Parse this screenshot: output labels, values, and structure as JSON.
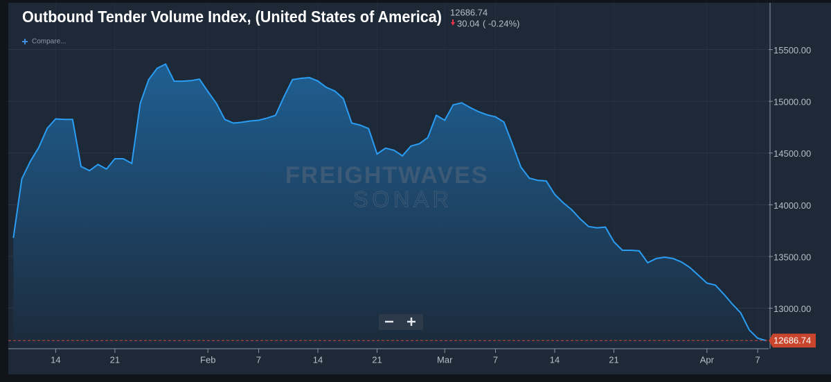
{
  "chart_data": {
    "type": "area",
    "title": "Outbound Tender Volume Index, (United States of America)",
    "change": "30.04",
    "change_pct": "( -0.24%)",
    "compare": "Compare...",
    "watermark": [
      "FREIGHTWAVES",
      "SONAR"
    ],
    "color": "#2a9df4",
    "grid": true,
    "x": [
      9,
      10,
      11,
      12,
      13,
      14,
      15,
      16,
      17,
      18,
      19,
      20,
      21,
      22,
      23,
      24,
      25,
      26,
      27,
      28,
      29,
      30,
      31,
      32,
      33,
      34,
      35,
      36,
      37,
      38,
      39,
      40,
      41,
      42,
      43,
      44,
      45,
      46,
      47,
      48,
      49,
      50,
      51,
      52,
      53,
      54,
      55,
      56,
      57,
      58,
      59,
      60,
      61,
      62,
      63,
      64,
      65,
      66,
      67,
      68,
      69,
      70,
      71,
      72,
      73,
      74,
      75,
      76,
      77,
      78,
      79,
      80,
      81,
      82,
      83,
      84,
      85,
      86,
      87,
      88,
      89,
      90,
      91,
      92,
      93,
      94,
      95,
      96,
      97,
      98
    ],
    "values": [
      13680,
      14250,
      14420,
      14555,
      14740,
      14830,
      14825,
      14825,
      14370,
      14330,
      14390,
      14345,
      14445,
      14445,
      14400,
      14980,
      15210,
      15320,
      15360,
      15195,
      15195,
      15200,
      15215,
      15095,
      14980,
      14825,
      14790,
      14797,
      14810,
      14817,
      14838,
      14865,
      15047,
      15210,
      15222,
      15230,
      15196,
      15135,
      15100,
      15027,
      14790,
      14770,
      14736,
      14490,
      14547,
      14527,
      14473,
      14568,
      14590,
      14650,
      14865,
      14817,
      14966,
      14986,
      14940,
      14900,
      14870,
      14850,
      14800,
      14588,
      14365,
      14257,
      14236,
      14230,
      14100,
      14020,
      13953,
      13865,
      13790,
      13777,
      13784,
      13642,
      13560,
      13560,
      13554,
      13439,
      13480,
      13493,
      13480,
      13446,
      13392,
      13318,
      13243,
      13223,
      13135,
      13040,
      12953,
      12790,
      12709,
      12686.74
    ],
    "xlim": [
      8.4,
      98.3
    ],
    "xticks": [
      {
        "value": 14,
        "label": "14"
      },
      {
        "value": 21,
        "label": "21"
      },
      {
        "value": 32,
        "label": "Feb"
      },
      {
        "value": 38,
        "label": "7"
      },
      {
        "value": 45,
        "label": "14"
      },
      {
        "value": 52,
        "label": "21"
      },
      {
        "value": 60,
        "label": "Mar"
      },
      {
        "value": 66,
        "label": "7"
      },
      {
        "value": 73,
        "label": "14"
      },
      {
        "value": 80,
        "label": "21"
      },
      {
        "value": 91,
        "label": "Apr"
      },
      {
        "value": 97,
        "label": "7"
      }
    ],
    "ylim": [
      12608,
      15953
    ],
    "yticks": [
      {
        "value": 13000,
        "label": "13000.00"
      },
      {
        "value": 13500,
        "label": "13500.00"
      },
      {
        "value": 14000,
        "label": "14000.00"
      },
      {
        "value": 14500,
        "label": "14500.00"
      },
      {
        "value": 15000,
        "label": "15000.00"
      },
      {
        "value": 15500,
        "label": "15500.00"
      }
    ]
  }
}
